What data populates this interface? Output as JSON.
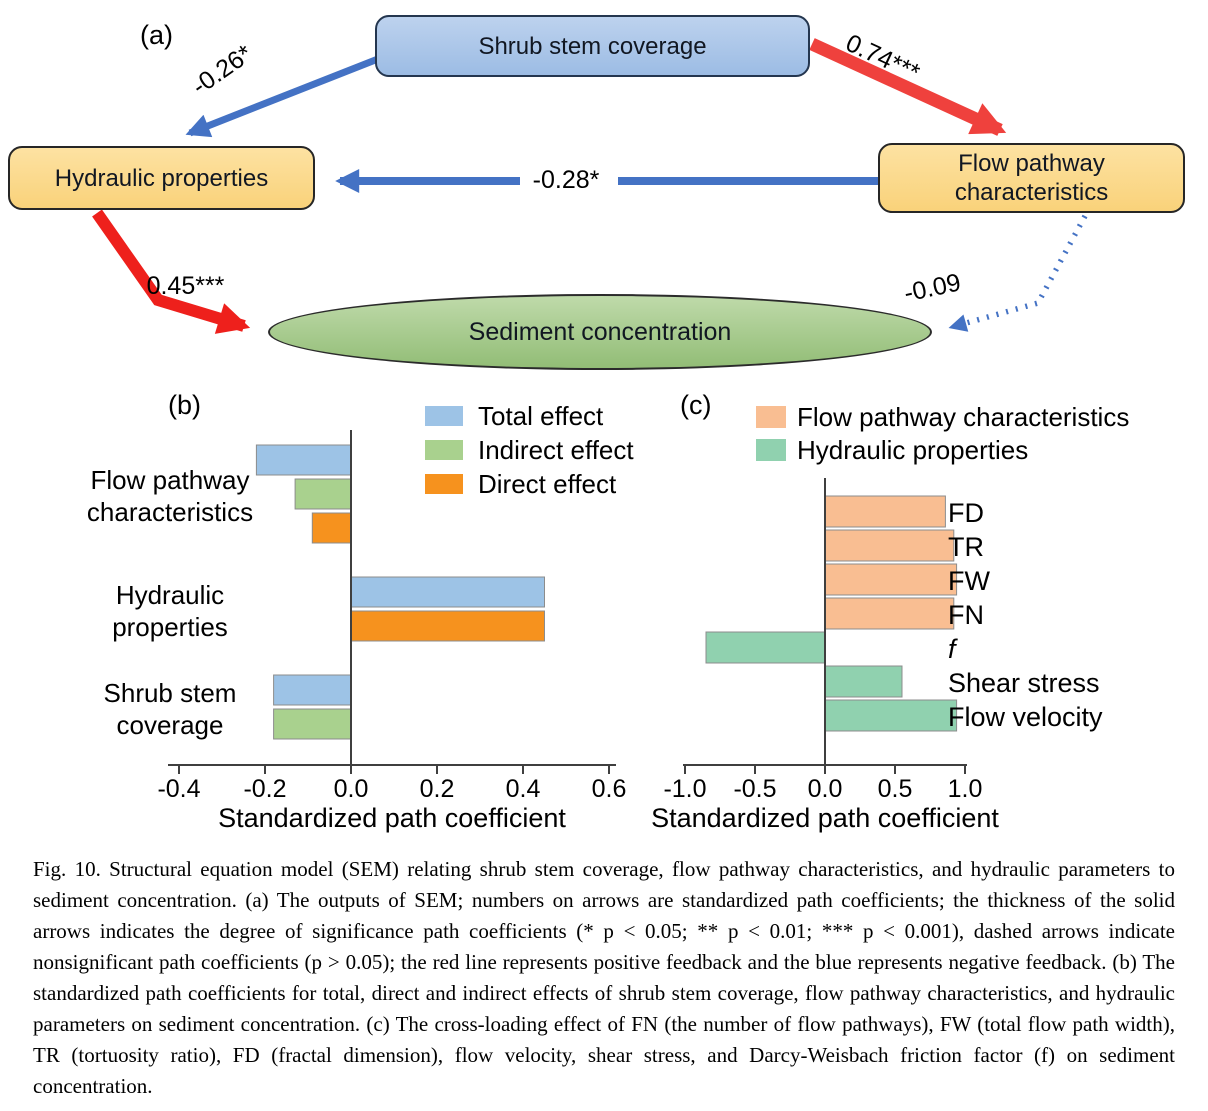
{
  "figure": {
    "panel_a_label": "(a)",
    "panel_b_label": "(b)",
    "panel_c_label": "(c)"
  },
  "panel_a": {
    "nodes": {
      "shrub": {
        "text": "Shrub stem coverage",
        "fill_top": "#BDD2EE",
        "fill_bottom": "#9CBCE4",
        "border": "#24364F"
      },
      "hydraulic": {
        "text": "Hydraulic properties",
        "fill_top": "#FDE2A2",
        "fill_bottom": "#F9D27A",
        "border": "#262626"
      },
      "flow": {
        "text": "Flow pathway characteristics",
        "fill_top": "#FDE2A2",
        "fill_bottom": "#F9D27A",
        "border": "#262626"
      },
      "sediment": {
        "text": "Sediment concentration",
        "fill_top": "#BFDAAA",
        "fill_bottom": "#92BD76",
        "border": "#2B2B2B"
      }
    },
    "edges": {
      "shrub_to_hydraulic": {
        "label": "-0.26*",
        "color": "#4472C4",
        "style": "solid"
      },
      "shrub_to_flow": {
        "label": "0.74***",
        "color": "#EF413D",
        "style": "solid"
      },
      "flow_to_hydraulic": {
        "label": "-0.28*",
        "color": "#4472C4",
        "style": "solid"
      },
      "hydraulic_to_sediment": {
        "label": "0.45***",
        "color": "#EE201C",
        "style": "solid"
      },
      "flow_to_sediment": {
        "label": "-0.09",
        "color": "#4472C4",
        "style": "dotted"
      }
    }
  },
  "chart_data": [
    {
      "id": "b",
      "type": "bar",
      "orientation": "horizontal",
      "panel": "(b)",
      "categories": [
        "Flow pathway characteristics",
        "Hydraulic properties",
        "Shrub stem coverage"
      ],
      "series": [
        {
          "name": "Total effect",
          "color": "#9DC3E6",
          "values": [
            -0.22,
            0.45,
            -0.18
          ]
        },
        {
          "name": "Indirect effect",
          "color": "#A9D18E",
          "values": [
            -0.13,
            null,
            -0.18
          ]
        },
        {
          "name": "Direct effect",
          "color": "#F6921E",
          "values": [
            -0.09,
            0.45,
            null
          ]
        }
      ],
      "xlabel": "Standardized path coefficient",
      "xlim": [
        -0.4,
        0.6
      ],
      "xticks": [
        -0.4,
        -0.2,
        0,
        0.2,
        0.4,
        0.6
      ],
      "legend_position": "top-right",
      "grid": false
    },
    {
      "id": "c",
      "type": "bar",
      "orientation": "horizontal",
      "panel": "(c)",
      "legend": [
        {
          "name": "Flow pathway characteristics",
          "color": "#F9BE92"
        },
        {
          "name": "Hydraulic properties",
          "color": "#90D1AF"
        }
      ],
      "bars": [
        {
          "label": "FD",
          "group": "Flow pathway characteristics",
          "value": 0.86
        },
        {
          "label": "TR",
          "group": "Flow pathway characteristics",
          "value": 0.92
        },
        {
          "label": "FW",
          "group": "Flow pathway characteristics",
          "value": 0.94
        },
        {
          "label": "FN",
          "group": "Flow pathway characteristics",
          "value": 0.92
        },
        {
          "label": "f",
          "group": "Hydraulic properties",
          "value": -0.85,
          "italic": true
        },
        {
          "label": "Shear stress",
          "group": "Hydraulic properties",
          "value": 0.55
        },
        {
          "label": "Flow velocity",
          "group": "Hydraulic properties",
          "value": 0.94
        }
      ],
      "xlabel": "Standardized path coefficient",
      "xlim": [
        -1.0,
        1.0
      ],
      "xticks": [
        -1.0,
        -0.5,
        0,
        0.5,
        1.0
      ],
      "legend_position": "top",
      "grid": false
    }
  ],
  "caption": {
    "text": "Fig. 10. Structural equation model (SEM) relating shrub stem coverage, flow pathway characteristics, and hydraulic parameters to sediment concentration. (a) The outputs of SEM; numbers on arrows are standardized path coefficients; the thickness of the solid arrows indicates the degree of significance path coefficients (* p < 0.05; ** p < 0.01; *** p < 0.001), dashed arrows indicate nonsignificant path coefficients (p > 0.05); the red line represents positive feedback and the blue represents negative feedback. (b) The standardized path coefficients for total, direct and indirect effects of shrub stem coverage, flow pathway characteristics, and hydraulic parameters on sediment concentration. (c) The cross-loading effect of FN (the number of flow pathways), FW (total flow path width), TR (tortuosity ratio), FD (fractal dimension), flow velocity, shear stress, and Darcy-Weisbach friction factor (f) on sediment concentration."
  }
}
